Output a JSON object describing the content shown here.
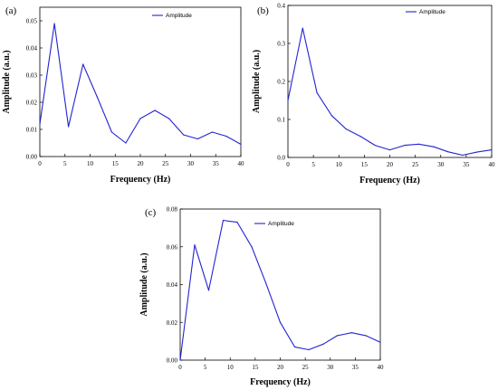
{
  "colors": {
    "series": "#2323d2",
    "axis": "#000000"
  },
  "chart_data": [
    {
      "panel": "(a)",
      "type": "line",
      "xlabel": "Frequency (Hz)",
      "ylabel": "Amplitude (a.u.)",
      "xlim": [
        0,
        40
      ],
      "ylim": [
        0,
        0.055
      ],
      "xticks": [
        "0",
        "5",
        "10",
        "15",
        "20",
        "25",
        "30",
        "35",
        "40"
      ],
      "yticks": [
        "0.00",
        "0.01",
        "0.02",
        "0.03",
        "0.04",
        "0.05"
      ],
      "legend": "top-right",
      "grid": false,
      "series": [
        {
          "name": "Amplitude",
          "x": [
            0,
            2.9,
            5.7,
            8.6,
            11.4,
            14.3,
            17.1,
            20.0,
            22.9,
            25.7,
            28.6,
            31.4,
            34.3,
            37.1,
            40.0
          ],
          "values": [
            0.012,
            0.049,
            0.011,
            0.034,
            0.022,
            0.009,
            0.005,
            0.014,
            0.017,
            0.014,
            0.008,
            0.0065,
            0.009,
            0.0075,
            0.0045
          ]
        }
      ]
    },
    {
      "panel": "(b)",
      "type": "line",
      "xlabel": "Frequency (Hz)",
      "ylabel": "Amplitude (a.u.)",
      "xlim": [
        0,
        40
      ],
      "ylim": [
        0,
        0.4
      ],
      "xticks": [
        "0",
        "5",
        "10",
        "15",
        "20",
        "25",
        "30",
        "35",
        "40"
      ],
      "yticks": [
        "0.0",
        "0.1",
        "0.2",
        "0.3",
        "0.4"
      ],
      "legend": "top-right",
      "grid": false,
      "series": [
        {
          "name": "Amplitude",
          "x": [
            0,
            2.9,
            5.7,
            8.6,
            11.4,
            14.3,
            17.1,
            20.0,
            22.9,
            25.7,
            28.6,
            31.4,
            34.3,
            37.1,
            40.0
          ],
          "values": [
            0.15,
            0.34,
            0.17,
            0.11,
            0.075,
            0.055,
            0.032,
            0.02,
            0.032,
            0.035,
            0.028,
            0.015,
            0.006,
            0.014,
            0.02
          ]
        }
      ]
    },
    {
      "panel": "(c)",
      "type": "line",
      "xlabel": "Frequency (Hz)",
      "ylabel": "Amplitude (a.u.)",
      "xlim": [
        0,
        40
      ],
      "ylim": [
        0,
        0.08
      ],
      "xticks": [
        "0",
        "5",
        "10",
        "15",
        "20",
        "25",
        "30",
        "35",
        "40"
      ],
      "yticks": [
        "0.00",
        "0.02",
        "0.04",
        "0.06",
        "0.08"
      ],
      "legend": "top-right",
      "grid": false,
      "series": [
        {
          "name": "Amplitude",
          "x": [
            0,
            2.9,
            5.7,
            8.6,
            11.4,
            14.3,
            17.1,
            20.0,
            22.9,
            25.7,
            28.6,
            31.4,
            34.3,
            37.1,
            40.0
          ],
          "values": [
            0.0,
            0.061,
            0.037,
            0.074,
            0.073,
            0.06,
            0.041,
            0.02,
            0.007,
            0.0055,
            0.0085,
            0.013,
            0.0145,
            0.013,
            0.0095
          ]
        }
      ]
    }
  ]
}
